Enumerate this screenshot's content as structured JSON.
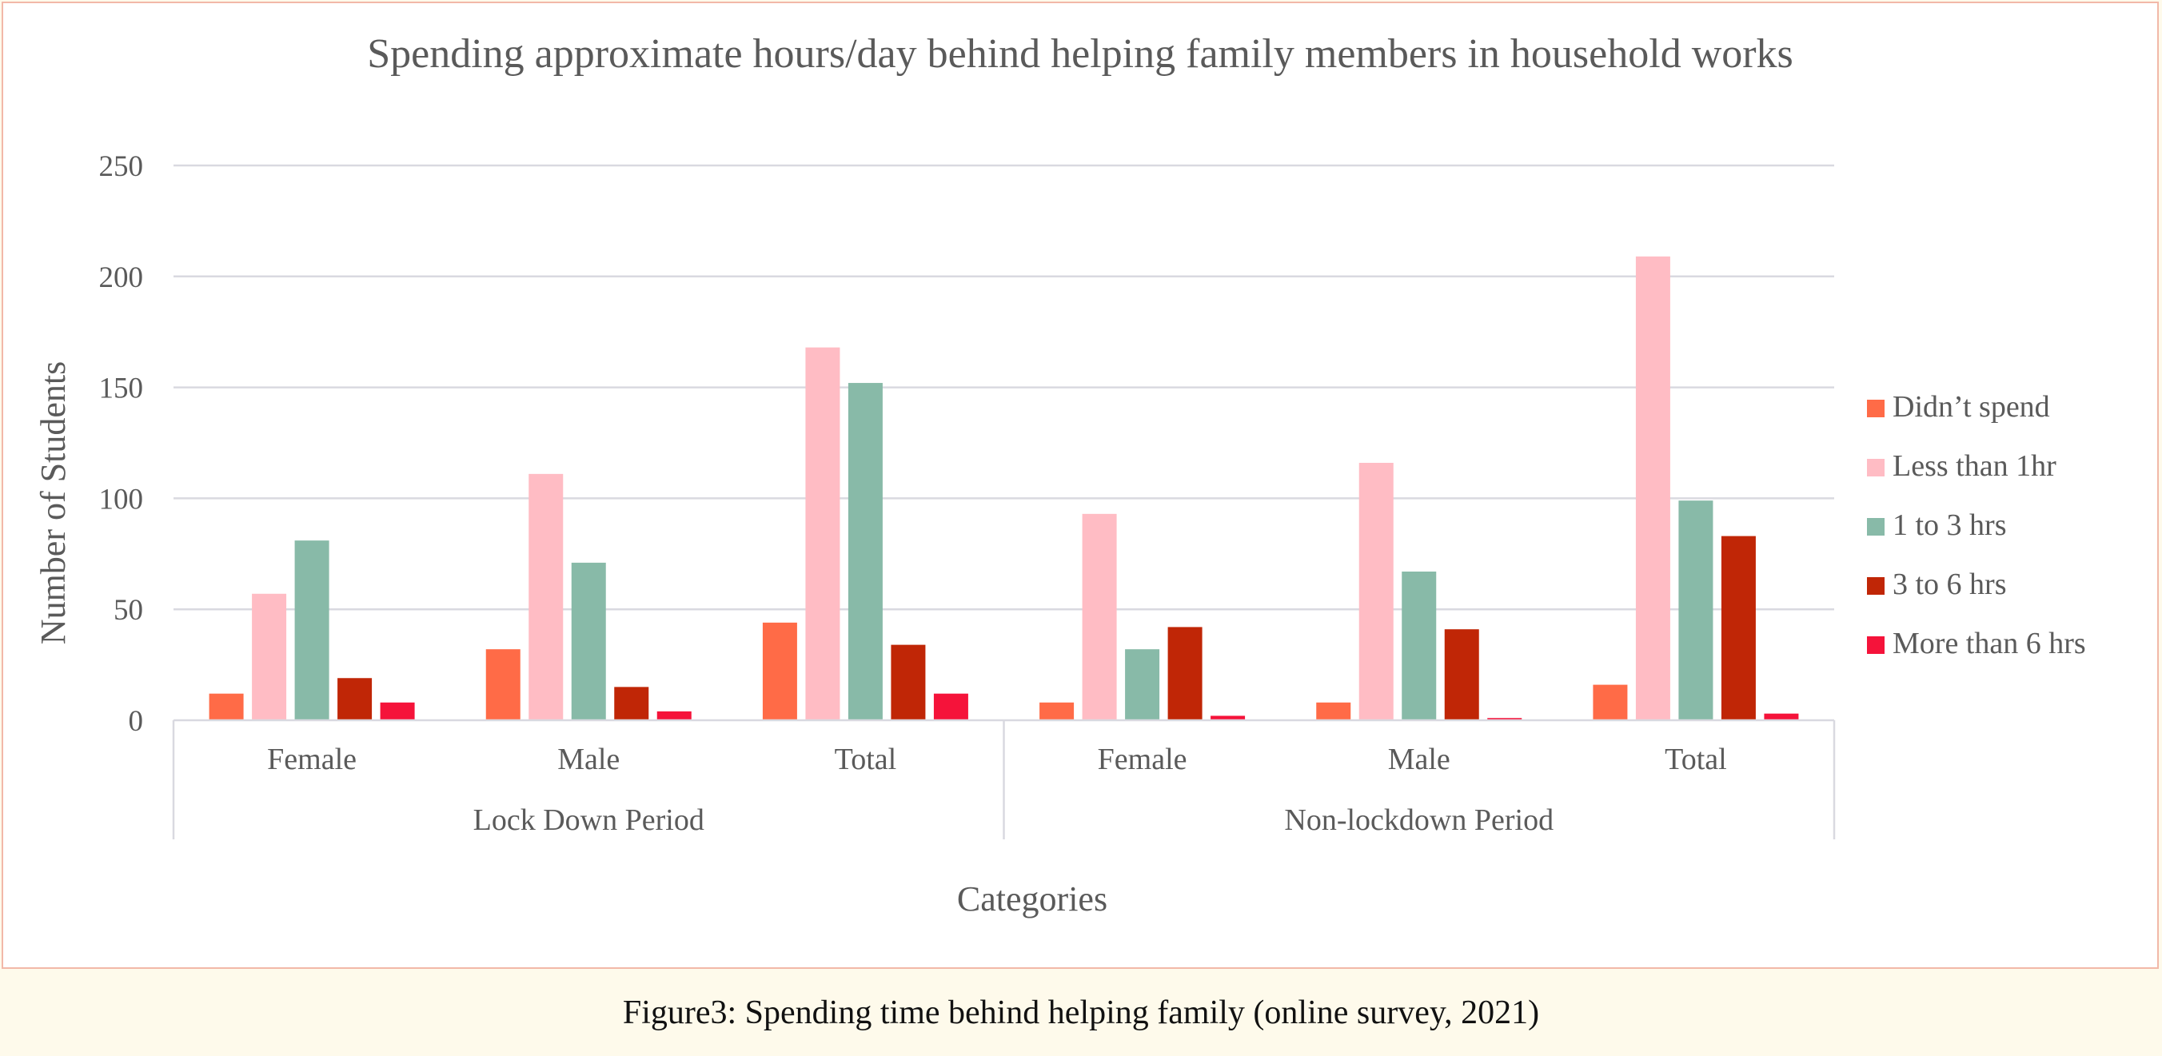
{
  "caption": "Figure3: Spending time behind helping family (online survey, 2021)",
  "colors": {
    "frame_border": "#f2b8a8",
    "gridline": "#d9d9e0",
    "caption_background": "#fefaeb"
  },
  "chart_data": {
    "type": "bar",
    "title": "Spending approximate hours/day behind helping family members in household works",
    "xlabel": "Categories",
    "ylabel": "Number of Students",
    "ylim": [
      0,
      250
    ],
    "yticks": [
      0,
      50,
      100,
      150,
      200,
      250
    ],
    "grid": true,
    "legend_position": "right",
    "groups": [
      {
        "label": "Lock Down Period",
        "categories": [
          "Female",
          "Male",
          "Total"
        ]
      },
      {
        "label": "Non-lockdown Period",
        "categories": [
          "Female",
          "Male",
          "Total"
        ]
      }
    ],
    "series": [
      {
        "name": "Didn’t spend",
        "color": "#ff6b47",
        "values": [
          12,
          32,
          44,
          8,
          8,
          16
        ]
      },
      {
        "name": "Less than 1hr",
        "color": "#ffbcc4",
        "values": [
          57,
          111,
          168,
          93,
          116,
          209
        ]
      },
      {
        "name": "1 to 3 hrs",
        "color": "#88baa8",
        "values": [
          81,
          71,
          152,
          32,
          67,
          99
        ]
      },
      {
        "name": "3 to 6 hrs",
        "color": "#c02606",
        "values": [
          19,
          15,
          34,
          42,
          41,
          83
        ]
      },
      {
        "name": "More than 6 hrs",
        "color": "#f5133a",
        "values": [
          8,
          4,
          12,
          2,
          1,
          3
        ]
      }
    ]
  }
}
